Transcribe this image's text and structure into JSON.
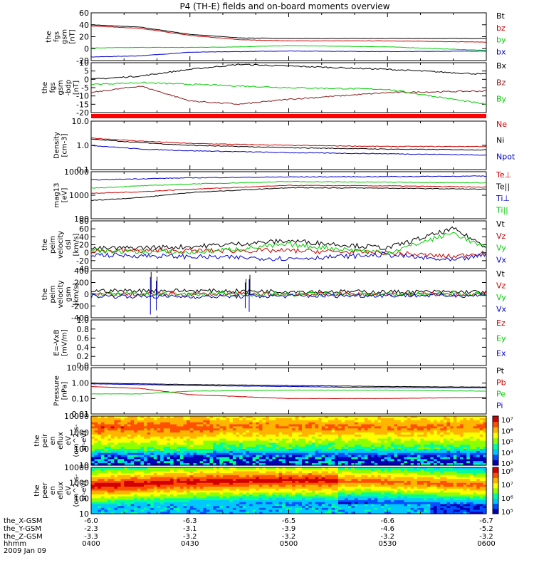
{
  "title": "P4 (TH-E) fields and on-board moments overview",
  "date_label": "2009 Jan 09",
  "colors": {
    "black": "#000000",
    "red": "#cc0000",
    "green": "#00cc00",
    "blue": "#0000cc",
    "darkred": "#8b1a1a",
    "brightred": "#ff0000"
  },
  "colorbar_palette": [
    "#0000b4",
    "#0050ff",
    "#00c8ff",
    "#00ff9a",
    "#8cff00",
    "#ffff00",
    "#ffb400",
    "#ff5000",
    "#d20000"
  ],
  "panel1": {
    "ylabel": [
      "the",
      "fgs",
      "gsm",
      "[nT]"
    ],
    "legend": [
      {
        "text": "Bt",
        "color": "black"
      },
      {
        "text": "bz",
        "color": "red"
      },
      {
        "text": "by",
        "color": "green"
      },
      {
        "text": "bx",
        "color": "blue"
      }
    ],
    "ticks": [
      "60",
      "40",
      "20",
      "0",
      "-20"
    ]
  },
  "panel2": {
    "ylabel": [
      "the",
      "fgs",
      "gsm",
      "-bdp",
      "[nT]"
    ],
    "legend": [
      {
        "text": "Bx",
        "color": "black"
      },
      {
        "text": "Bz",
        "color": "darkred"
      },
      {
        "text": "By",
        "color": "green"
      }
    ],
    "ticks": [
      "10",
      "5",
      "0",
      "-5",
      "-10",
      "-15",
      "-20"
    ]
  },
  "panel3": {
    "ylabel": [
      "Density",
      "[cm-3]"
    ],
    "legend": [
      {
        "text": "Ne",
        "color": "red"
      },
      {
        "text": "Ni",
        "color": "black"
      },
      {
        "text": "Npot",
        "color": "blue"
      }
    ],
    "ticks": [
      "10.0",
      "1.0",
      "0.1"
    ]
  },
  "panel4": {
    "ylabel": [
      "mag13",
      "[eV]"
    ],
    "legend": [
      {
        "text": "Te⊥",
        "color": "red"
      },
      {
        "text": "Te||",
        "color": "black"
      },
      {
        "text": "Ti⊥",
        "color": "blue"
      },
      {
        "text": "Ti||",
        "color": "green"
      }
    ],
    "ticks": [
      "10000",
      "1000",
      "100"
    ]
  },
  "panel5": {
    "ylabel": [
      "the",
      "peim",
      "velocity",
      "dsl",
      "[km/s]"
    ],
    "legend": [
      {
        "text": "Vt",
        "color": "black"
      },
      {
        "text": "Vz",
        "color": "red"
      },
      {
        "text": "Vy",
        "color": "green"
      },
      {
        "text": "Vx",
        "color": "blue"
      }
    ],
    "ticks": [
      "80",
      "60",
      "40",
      "20",
      "0",
      "-20",
      "-40"
    ]
  },
  "panel6": {
    "ylabel": [
      "the",
      "peim",
      "velocity",
      "gsm",
      "[km/s]"
    ],
    "legend": [
      {
        "text": "Vt",
        "color": "black"
      },
      {
        "text": "Vz",
        "color": "red"
      },
      {
        "text": "Vy",
        "color": "green"
      },
      {
        "text": "Vx",
        "color": "blue"
      }
    ],
    "ticks": [
      "400",
      "200",
      "0",
      "-200",
      "-400"
    ]
  },
  "panel7": {
    "ylabel": [
      "E=-VxB",
      "[mV/m]"
    ],
    "legend": [
      {
        "text": "Ez",
        "color": "red"
      },
      {
        "text": "Ey",
        "color": "green"
      },
      {
        "text": "Ex",
        "color": "blue"
      }
    ],
    "ticks": [
      "1.0",
      "0.8",
      "0.6",
      "0.4",
      "0.2",
      "0.0"
    ]
  },
  "panel8": {
    "ylabel": [
      "Pressure",
      "[nPa]"
    ],
    "legend": [
      {
        "text": "Pt",
        "color": "black"
      },
      {
        "text": "Pb",
        "color": "red"
      },
      {
        "text": "Pe",
        "color": "green"
      },
      {
        "text": "Pi",
        "color": "blue"
      }
    ],
    "ticks": [
      "10.00",
      "1.00",
      "0.10",
      "0.01"
    ]
  },
  "panel9": {
    "ylabel": [
      "the",
      "peir",
      "en",
      "eflux",
      "eV",
      "(cm^2-s-",
      "sr-eV)"
    ],
    "ticks": [
      "10000",
      "1000",
      "100",
      "10"
    ],
    "cbar_ticks": [
      "10⁷",
      "10⁶",
      "10⁵",
      "10⁴",
      "10³"
    ]
  },
  "panel10": {
    "ylabel": [
      "the",
      "peer",
      "en",
      "eflux",
      "eV",
      "(cm^2-s-",
      "sr-eV)"
    ],
    "ticks": [
      "10000",
      "1000",
      "100",
      "10"
    ],
    "cbar_ticks": [
      "10⁸",
      "10⁷",
      "10⁶",
      "10⁵"
    ]
  },
  "xaxis": {
    "row_labels": [
      "the_X-GSM",
      "the_Y-GSM",
      "the_Z-GSM",
      "hhmm"
    ],
    "columns": [
      {
        "x": "-6.0",
        "y": "-2.3",
        "z": "-3.3",
        "t": "0400"
      },
      {
        "x": "-6.3",
        "y": "-3.1",
        "z": "-3.2",
        "t": "0430"
      },
      {
        "x": "-6.5",
        "y": "-3.9",
        "z": "-3.2",
        "t": "0500"
      },
      {
        "x": "-6.6",
        "y": "-4.6",
        "z": "-3.2",
        "t": "0530"
      },
      {
        "x": "-6.7",
        "y": "-5.2",
        "z": "-3.2",
        "t": "0600"
      }
    ]
  },
  "chart_data": {
    "type": "line",
    "title": "P4 (TH-E) fields and on-board moments overview",
    "x_time_range": [
      "0400",
      "0600"
    ],
    "panels": [
      {
        "name": "the fgs gsm [nT]",
        "ylim": [
          -20,
          60
        ],
        "series": [
          {
            "name": "Bt",
            "x": [
              "0400",
              "0415",
              "0430",
              "0445",
              "0500",
              "0530",
              "0600"
            ],
            "values": [
              40,
              36,
              24,
              18,
              17,
              17,
              17
            ]
          },
          {
            "name": "bz",
            "x": [
              "0400",
              "0415",
              "0430",
              "0445",
              "0500",
              "0530",
              "0600"
            ],
            "values": [
              38,
              34,
              22,
              15,
              13,
              13,
              11
            ]
          },
          {
            "name": "by",
            "x": [
              "0400",
              "0415",
              "0430",
              "0445",
              "0500",
              "0530",
              "0600"
            ],
            "values": [
              1,
              2,
              2,
              3,
              5,
              3,
              -3
            ]
          },
          {
            "name": "bx",
            "x": [
              "0400",
              "0415",
              "0430",
              "0445",
              "0500",
              "0530",
              "0600"
            ],
            "values": [
              -14,
              -12,
              -6,
              -5,
              -4,
              -5,
              -4
            ]
          }
        ]
      },
      {
        "name": "the fgs gsm -bdp [nT]",
        "ylim": [
          -20,
          10
        ],
        "series": [
          {
            "name": "Bx",
            "x": [
              "0400",
              "0415",
              "0430",
              "0445",
              "0500",
              "0530",
              "0600"
            ],
            "values": [
              0,
              2,
              6,
              9,
              8,
              6,
              3
            ]
          },
          {
            "name": "Bz",
            "x": [
              "0400",
              "0415",
              "0430",
              "0445",
              "0500",
              "0530",
              "0600"
            ],
            "values": [
              -8,
              -4,
              -13,
              -15,
              -12,
              -8,
              -7
            ]
          },
          {
            "name": "By",
            "x": [
              "0400",
              "0415",
              "0430",
              "0445",
              "0500",
              "0530",
              "0600"
            ],
            "values": [
              -3,
              -2,
              -3,
              -4,
              -5,
              -6,
              -15
            ]
          }
        ]
      },
      {
        "name": "Density [cm-3]",
        "scale": "log",
        "ylim": [
          0.1,
          10
        ],
        "series": [
          {
            "name": "Ne",
            "x": [
              "0400",
              "0415",
              "0430",
              "0500",
              "0530",
              "0600"
            ],
            "values": [
              2.0,
              1.5,
              1.2,
              1.0,
              0.9,
              0.9
            ]
          },
          {
            "name": "Ni",
            "x": [
              "0400",
              "0415",
              "0430",
              "0500",
              "0530",
              "0600"
            ],
            "values": [
              1.8,
              1.3,
              1.0,
              0.8,
              0.7,
              0.65
            ]
          },
          {
            "name": "Npot",
            "x": [
              "0400",
              "0415",
              "0430",
              "0500",
              "0530",
              "0600"
            ],
            "values": [
              1.0,
              0.7,
              0.6,
              0.5,
              0.45,
              0.4
            ]
          }
        ]
      },
      {
        "name": "mag13 [eV]",
        "scale": "log",
        "ylim": [
          100,
          10000
        ],
        "series": [
          {
            "name": "Te⊥",
            "x": [
              "0400",
              "0415",
              "0430",
              "0500",
              "0530",
              "0600"
            ],
            "values": [
              1200,
              1400,
              1800,
              2600,
              2500,
              2200
            ]
          },
          {
            "name": "Te||",
            "x": [
              "0400",
              "0415",
              "0430",
              "0500",
              "0530",
              "0600"
            ],
            "values": [
              600,
              800,
              1300,
              2100,
              2000,
              1800
            ]
          },
          {
            "name": "Ti⊥",
            "x": [
              "0400",
              "0415",
              "0430",
              "0500",
              "0530",
              "0600"
            ],
            "values": [
              4500,
              5000,
              5500,
              6000,
              6200,
              6500
            ]
          },
          {
            "name": "Ti||",
            "x": [
              "0400",
              "0415",
              "0430",
              "0500",
              "0530",
              "0600"
            ],
            "values": [
              2000,
              2500,
              3000,
              3800,
              3600,
              3400
            ]
          }
        ]
      },
      {
        "name": "the peim velocity dsl [km/s]",
        "ylim": [
          -40,
          80
        ],
        "series": [
          {
            "name": "Vt",
            "x": [
              "0400",
              "0430",
              "0500",
              "0530",
              "0550",
              "0600"
            ],
            "values": [
              10,
              15,
              30,
              12,
              60,
              15
            ]
          },
          {
            "name": "Vz",
            "x": [
              "0400",
              "0430",
              "0500",
              "0530",
              "0550",
              "0600"
            ],
            "values": [
              5,
              5,
              5,
              0,
              -10,
              2
            ]
          },
          {
            "name": "Vy",
            "x": [
              "0400",
              "0430",
              "0500",
              "0530",
              "0550",
              "0600"
            ],
            "values": [
              5,
              0,
              20,
              0,
              50,
              10
            ]
          },
          {
            "name": "Vx",
            "x": [
              "0400",
              "0430",
              "0500",
              "0530",
              "0550",
              "0600"
            ],
            "values": [
              -5,
              -10,
              -15,
              -5,
              -20,
              -5
            ]
          }
        ]
      },
      {
        "name": "the peim velocity gsm [km/s]",
        "ylim": [
          -400,
          400
        ],
        "series": [
          {
            "name": "Vt",
            "x": [
              "0400",
              "0430",
              "0500",
              "0530",
              "0600"
            ],
            "values": [
              60,
              60,
              50,
              40,
              40
            ]
          },
          {
            "name": "Vz",
            "x": [
              "0400",
              "0430",
              "0500",
              "0530",
              "0600"
            ],
            "values": [
              0,
              0,
              0,
              0,
              0
            ]
          },
          {
            "name": "Vy",
            "x": [
              "0400",
              "0430",
              "0500",
              "0530",
              "0600"
            ],
            "values": [
              0,
              0,
              0,
              0,
              0
            ]
          },
          {
            "name": "Vx",
            "x": [
              "0400",
              "0430",
              "0500",
              "0530",
              "0600"
            ],
            "values": [
              -30,
              -40,
              -30,
              -20,
              -20
            ]
          }
        ]
      },
      {
        "name": "E=-VxB [mV/m]",
        "ylim": [
          0,
          1
        ],
        "series": []
      },
      {
        "name": "Pressure [nPa]",
        "scale": "log",
        "ylim": [
          0.01,
          10
        ],
        "series": [
          {
            "name": "Pt",
            "x": [
              "0400",
              "0415",
              "0430",
              "0500",
              "0530",
              "0600"
            ],
            "values": [
              1.0,
              0.9,
              0.8,
              0.7,
              0.6,
              0.55
            ]
          },
          {
            "name": "Pb",
            "x": [
              "0400",
              "0415",
              "0430",
              "0500",
              "0530",
              "0600"
            ],
            "values": [
              0.6,
              0.45,
              0.18,
              0.1,
              0.1,
              0.12
            ]
          },
          {
            "name": "Pe",
            "x": [
              "0400",
              "0415",
              "0430",
              "0500",
              "0530",
              "0600"
            ],
            "values": [
              0.2,
              0.2,
              0.3,
              0.35,
              0.35,
              0.3
            ]
          },
          {
            "name": "Pi",
            "x": [
              "0400",
              "0415",
              "0430",
              "0500",
              "0530",
              "0600"
            ],
            "values": [
              0.9,
              0.8,
              0.7,
              0.6,
              0.5,
              0.5
            ]
          }
        ]
      },
      {
        "name": "the peir en eflux",
        "type": "heatmap",
        "scale": "log",
        "ylim": [
          10,
          10000
        ],
        "colorbar": [
          1000,
          10000000
        ]
      },
      {
        "name": "the peer en eflux",
        "type": "heatmap",
        "scale": "log",
        "ylim": [
          10,
          10000
        ],
        "colorbar": [
          100000,
          100000000
        ]
      }
    ]
  }
}
